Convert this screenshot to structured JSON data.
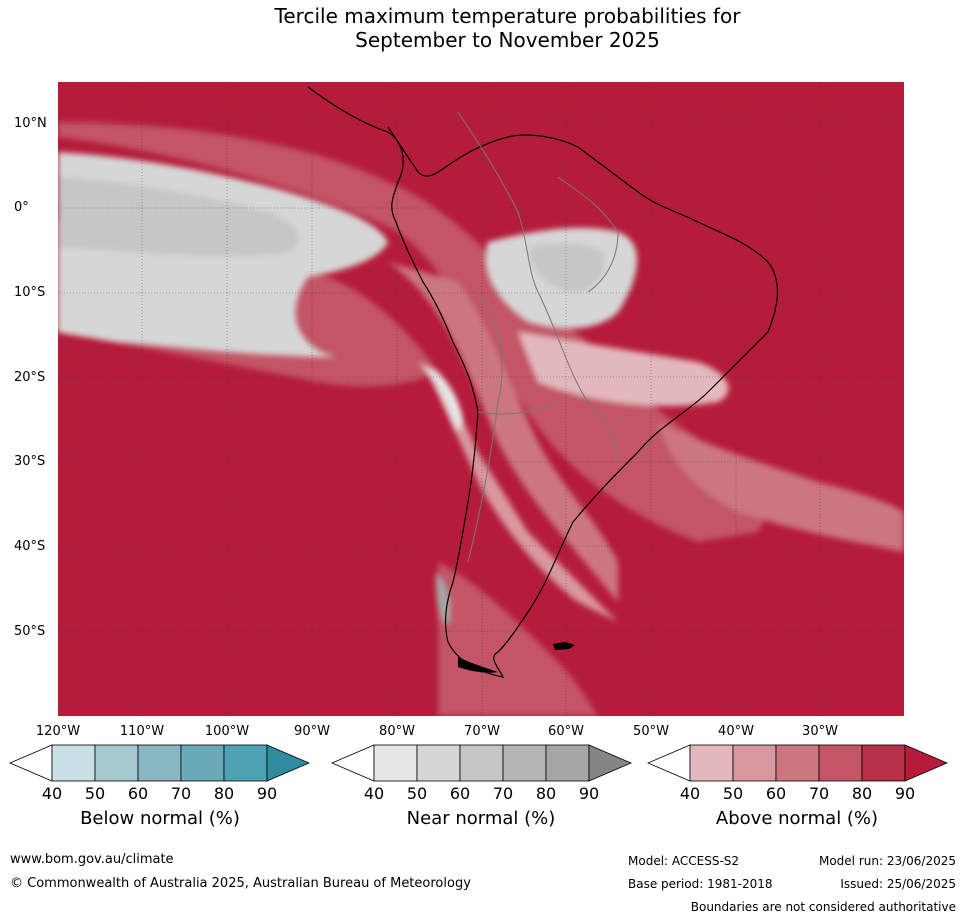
{
  "title": {
    "line1": "Tercile maximum temperature probabilities for",
    "line2": "September to November 2025"
  },
  "map": {
    "latitude_labels": [
      "10°N",
      "0°",
      "10°S",
      "20°S",
      "30°S",
      "40°S",
      "50°S"
    ],
    "longitude_labels": [
      "120°W",
      "110°W",
      "100°W",
      "90°W",
      "80°W",
      "70°W",
      "60°W",
      "50°W",
      "40°W",
      "30°W"
    ],
    "background_color": "#b51c3a"
  },
  "legend": {
    "below": {
      "title": "Below normal (%)",
      "ticks": [
        "40",
        "50",
        "60",
        "70",
        "80",
        "90"
      ],
      "colors": [
        "#c9e0e6",
        "#a6c9d0",
        "#88b6c2",
        "#6aa9b8",
        "#4da3b3",
        "#2f8c9e"
      ]
    },
    "near": {
      "title": "Near normal (%)",
      "ticks": [
        "40",
        "50",
        "60",
        "70",
        "80",
        "90"
      ],
      "colors": [
        "#e6e6e6",
        "#d6d6d6",
        "#c6c6c6",
        "#b5b5b5",
        "#a6a6a6",
        "#858585"
      ]
    },
    "above": {
      "title": "Above normal (%)",
      "ticks": [
        "40",
        "50",
        "60",
        "70",
        "80",
        "90"
      ],
      "colors": [
        "#e3b8bd",
        "#d8979f",
        "#cc7680",
        "#c35565",
        "#b9304a",
        "#b51c3a"
      ]
    }
  },
  "footer": {
    "website": "www.bom.gov.au/climate",
    "copyright": "© Commonwealth of Australia 2025, Australian Bureau of Meteorology",
    "model": "Model: ACCESS-S2",
    "model_run": "Model run: 23/06/2025",
    "base_period": "Base period: 1981-2018",
    "issued": "Issued: 25/06/2025",
    "disclaimer": "Boundaries are not considered authoritative"
  }
}
